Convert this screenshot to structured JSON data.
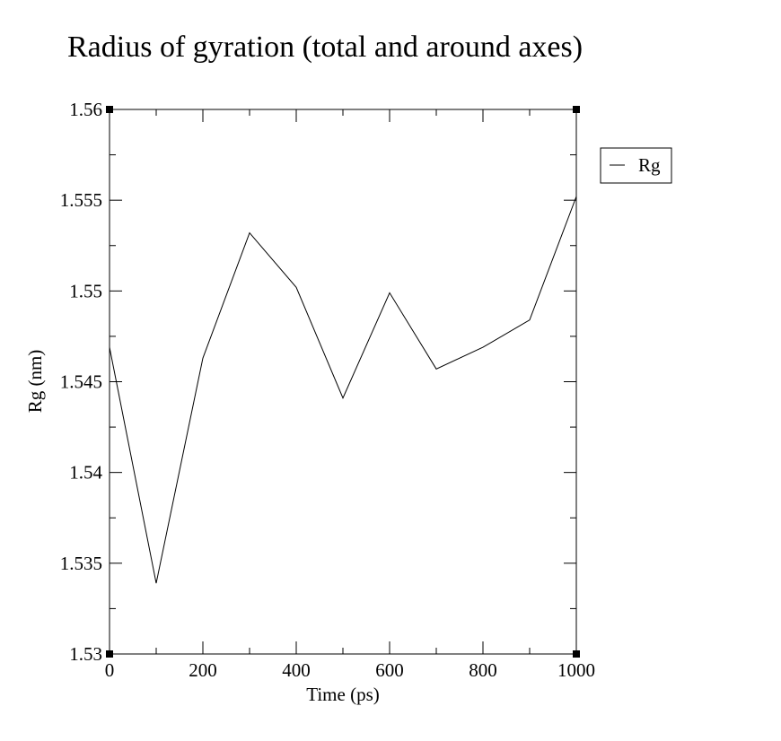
{
  "chart_data": {
    "type": "line",
    "title": "Radius of gyration (total and around axes)",
    "xlabel": "Time (ps)",
    "ylabel": "Rg (nm)",
    "xlim": [
      0,
      1000
    ],
    "ylim": [
      1.53,
      1.56
    ],
    "xticks": [
      0,
      200,
      400,
      600,
      800,
      1000
    ],
    "xtick_labels": [
      "0",
      "200",
      "400",
      "600",
      "800",
      "1000"
    ],
    "xminor_ticks": [
      100,
      300,
      500,
      700,
      900
    ],
    "yticks": [
      1.53,
      1.535,
      1.54,
      1.545,
      1.55,
      1.555,
      1.56
    ],
    "ytick_labels": [
      "1.53",
      "1.535",
      "1.54",
      "1.545",
      "1.55",
      "1.555",
      "1.56"
    ],
    "yminor_ticks": [
      1.5325,
      1.5375,
      1.5425,
      1.5475,
      1.5525,
      1.5575
    ],
    "grid": false,
    "legend_position": "top-right",
    "series": [
      {
        "name": "Rg",
        "color": "#000000",
        "x": [
          0,
          100,
          200,
          300,
          400,
          500,
          600,
          700,
          800,
          900,
          1000
        ],
        "values": [
          1.5469,
          1.5339,
          1.5463,
          1.5532,
          1.5502,
          1.5441,
          1.5499,
          1.5457,
          1.5469,
          1.5484,
          1.5552
        ]
      }
    ]
  }
}
